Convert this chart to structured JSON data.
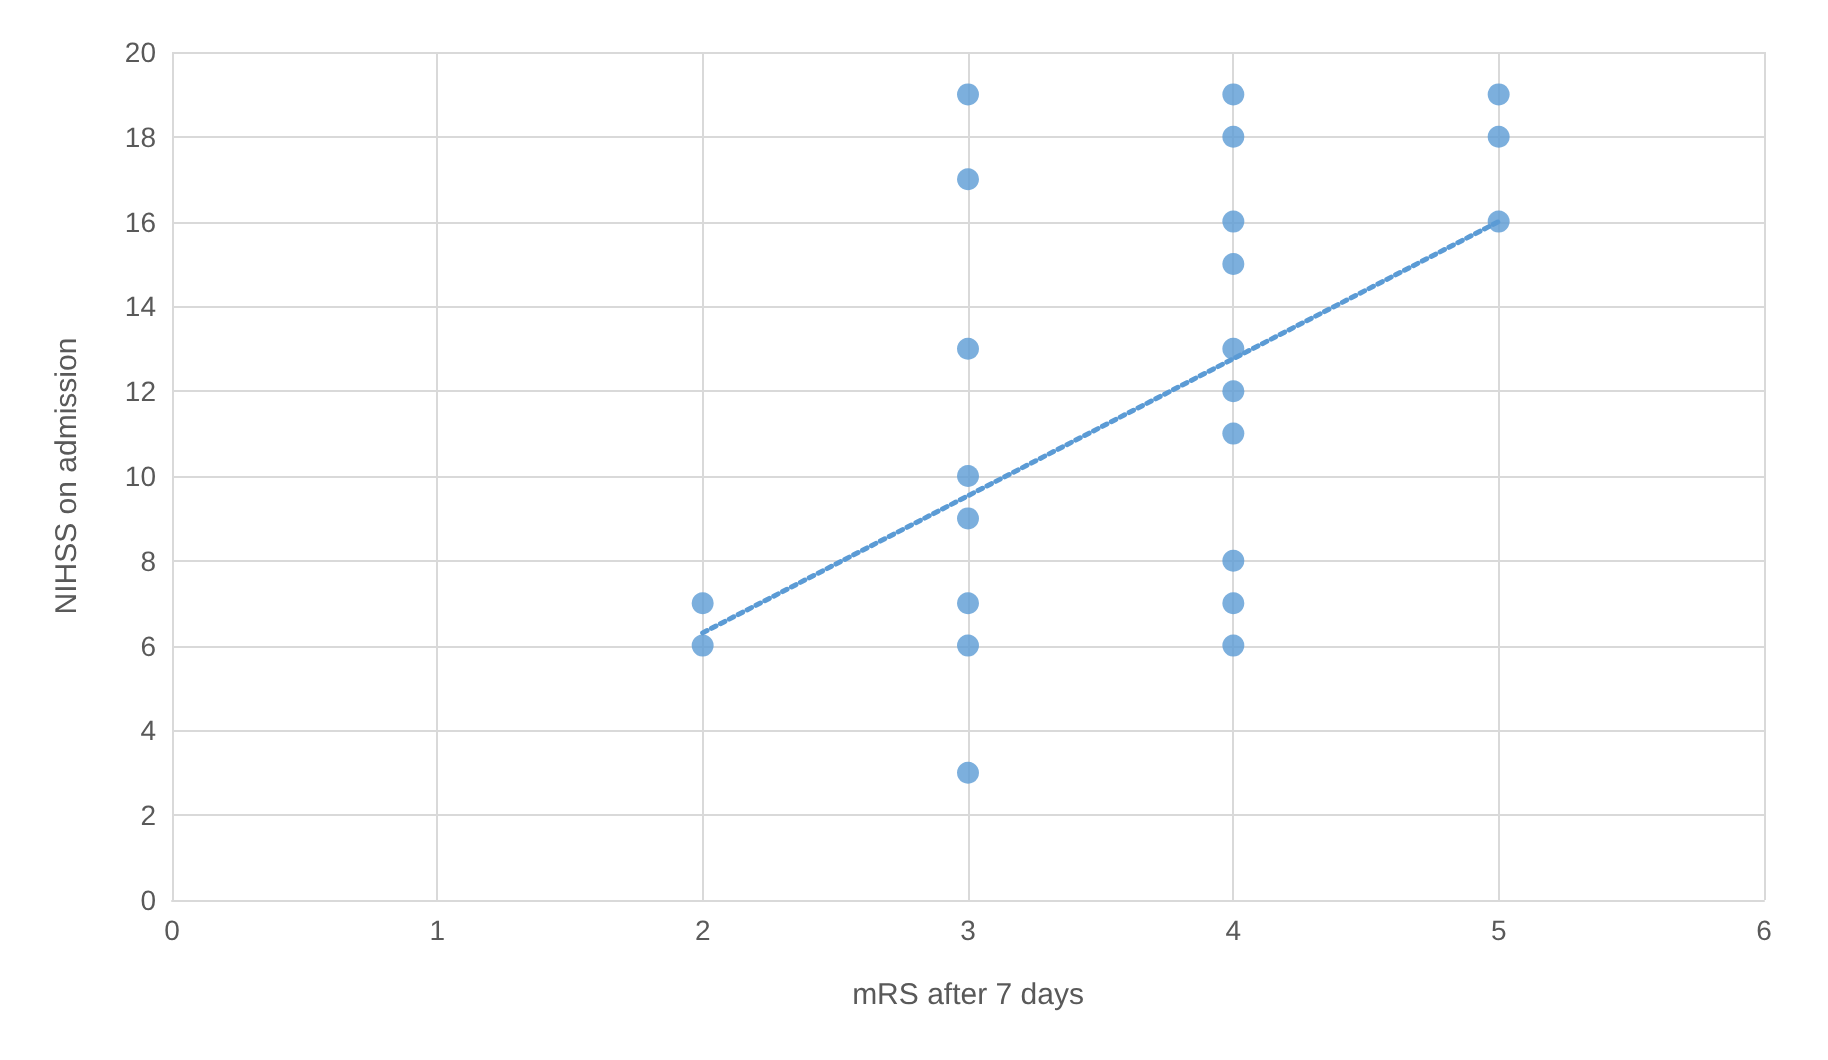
{
  "chart_data": {
    "type": "scatter",
    "xlabel": "mRS after 7 days",
    "ylabel": "NIHSS on admission",
    "xlim": [
      0,
      6
    ],
    "xticks": [
      0,
      1,
      2,
      3,
      4,
      5,
      6
    ],
    "ylim": [
      0,
      20
    ],
    "yticks": [
      0,
      2,
      4,
      6,
      8,
      10,
      12,
      14,
      16,
      18,
      20
    ],
    "grid": true,
    "marker": "circle",
    "series": [
      {
        "color": "#5b9bd5",
        "x": [
          2,
          2,
          3,
          3,
          3,
          3,
          3,
          3,
          3,
          3,
          4,
          4,
          4,
          4,
          4,
          4,
          4,
          4,
          4,
          4,
          5,
          5,
          5
        ],
        "values": [
          7,
          6,
          19,
          17,
          13,
          10,
          9,
          7,
          6,
          3,
          19,
          18,
          16,
          15,
          13,
          12,
          11,
          8,
          7,
          6,
          19,
          18,
          16
        ]
      },
      {
        "type": "line",
        "color": "#5b9bd5",
        "line_style": "dotted",
        "marker": "none",
        "x": [
          2,
          5
        ],
        "values": [
          6.3,
          16.0
        ]
      }
    ]
  }
}
